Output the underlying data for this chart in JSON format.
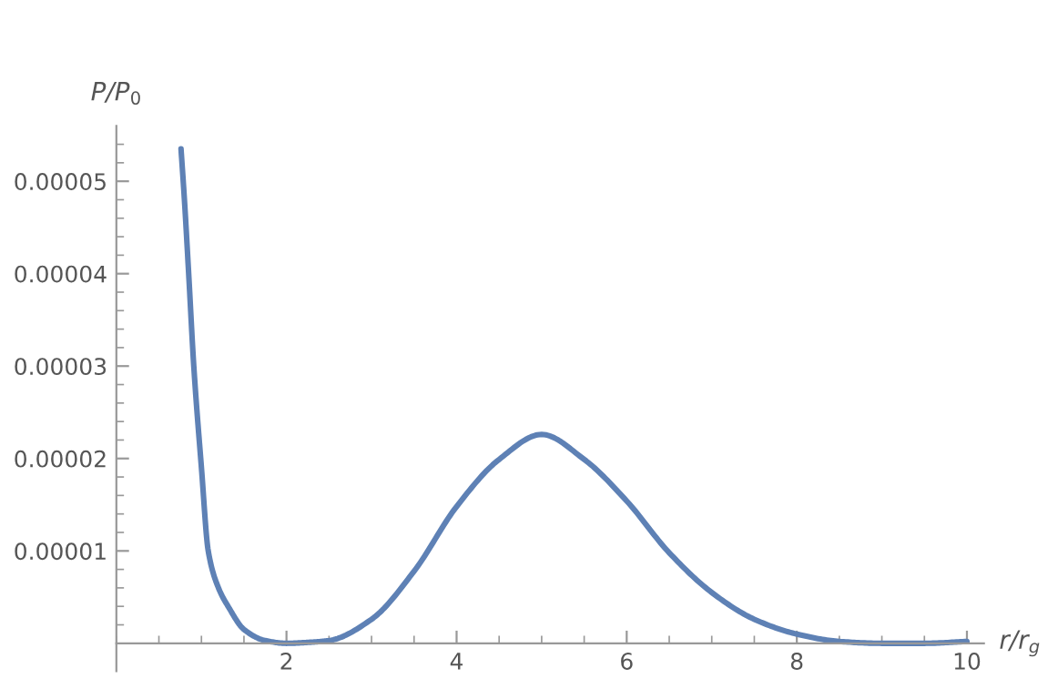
{
  "chart_data": {
    "type": "line",
    "xlabel": "r/r$_{g}$",
    "ylabel": "P/P$_{0}$",
    "x": [
      0.76,
      0.8,
      0.85,
      0.91,
      1.0,
      1.08,
      1.2,
      1.32,
      1.5,
      1.75,
      2.0,
      2.25,
      2.5,
      3.0,
      3.5,
      4.0,
      4.5,
      5.0,
      5.5,
      6.0,
      6.5,
      7.0,
      7.5,
      8.0,
      8.5,
      9.0,
      9.5,
      10.0
    ],
    "series": [
      {
        "color": "#5e81b5",
        "values": [
          5.35e-05,
          4.8e-05,
          4e-05,
          3e-05,
          1.9e-05,
          1e-05,
          6e-06,
          3.9e-06,
          1.5e-06,
          3e-07,
          0.0,
          1e-07,
          3e-07,
          2.6e-06,
          7.8e-06,
          1.48e-05,
          1.99e-05,
          2.26e-05,
          1.99e-05,
          1.54e-05,
          9.8e-06,
          5.5e-06,
          2.6e-06,
          1e-06,
          2e-07,
          0.0,
          0.0,
          2e-07
        ]
      }
    ],
    "xlim": [
      0,
      10.2
    ],
    "ylim": [
      -3e-06,
      5.6e-05
    ],
    "xticks": [
      2,
      4,
      6,
      8,
      10
    ],
    "yticks": [
      {
        "value": 1e-05,
        "label": "0.00001"
      },
      {
        "value": 2e-05,
        "label": "0.00002"
      },
      {
        "value": 3e-05,
        "label": "0.00003"
      },
      {
        "value": 4e-05,
        "label": "0.00004"
      },
      {
        "value": 5e-05,
        "label": "0.00005"
      }
    ],
    "grid": false,
    "marker": "none",
    "line_style": "solid"
  }
}
